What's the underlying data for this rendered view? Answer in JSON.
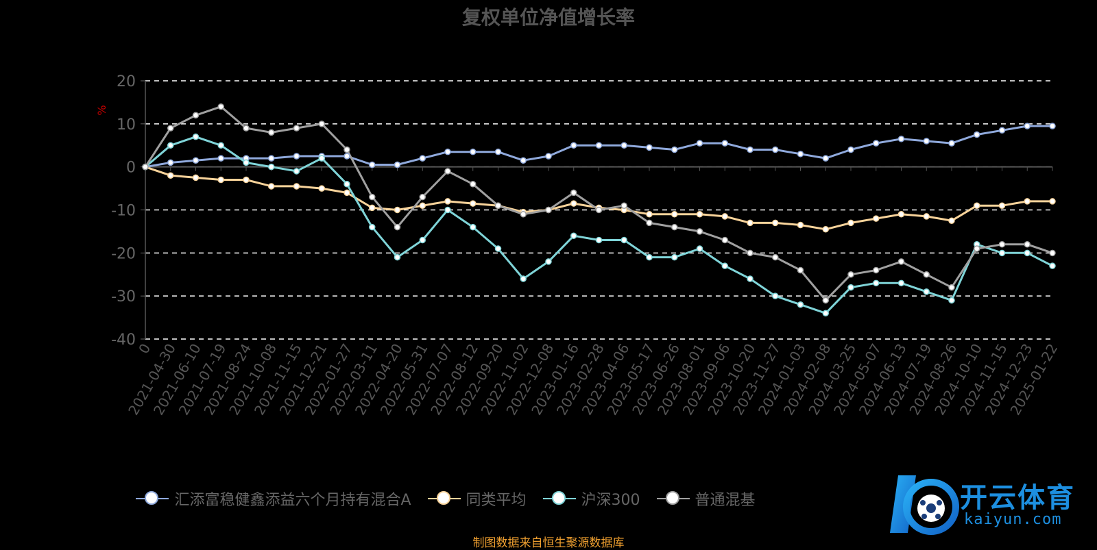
{
  "title": "复权单位净值增长率",
  "source_note": "制图数据来自恒生聚源数据库",
  "watermark": {
    "text": "开云体育",
    "sub": "kaiyun.com"
  },
  "chart_data": {
    "type": "line",
    "title": "复权单位净值增长率",
    "ylabel": "%",
    "ylim": [
      -40,
      20
    ],
    "yticks": [
      20,
      10,
      0,
      -10,
      -20,
      -30,
      -40
    ],
    "grid": true,
    "legend_position": "bottom",
    "xticks": [
      "0",
      "2021-04-30",
      "2021-06-10",
      "2021-07-19",
      "2021-08-24",
      "2021-10-08",
      "2021-11-15",
      "2021-12-21",
      "2022-01-27",
      "2022-03-11",
      "2022-04-20",
      "2022-05-31",
      "2022-07-07",
      "2022-08-12",
      "2022-09-20",
      "2022-11-02",
      "2022-12-08",
      "2023-01-16",
      "2023-02-28",
      "2023-04-06",
      "2023-05-17",
      "2023-06-26",
      "2023-08-01",
      "2023-09-06",
      "2023-10-20",
      "2023-11-27",
      "2024-01-03",
      "2024-02-08",
      "2024-03-25",
      "2024-05-07",
      "2024-06-13",
      "2024-07-19",
      "2024-08-26",
      "2024-10-10",
      "2024-11-15",
      "2024-12-23",
      "2025-01-22"
    ],
    "series": [
      {
        "name": "汇添富稳健鑫添益六个月持有混合A",
        "color": "#8fa9dc",
        "values": [
          0,
          1,
          1.5,
          2,
          2,
          2,
          2.5,
          2.5,
          2.5,
          0.5,
          0.5,
          2,
          3.5,
          3.5,
          3.5,
          1.5,
          2.5,
          5,
          5,
          5,
          4.5,
          4,
          5.5,
          5.5,
          4,
          4,
          3,
          2,
          4,
          5.5,
          6.5,
          6,
          5.5,
          7.5,
          8.5,
          9.5,
          9.5
        ]
      },
      {
        "name": "同类平均",
        "color": "#f8d39a",
        "values": [
          0,
          -2,
          -2.5,
          -3,
          -3,
          -4.5,
          -4.5,
          -5,
          -6,
          -9.5,
          -10,
          -9,
          -8,
          -8.5,
          -9,
          -10.5,
          -10,
          -8.5,
          -9.5,
          -10,
          -11,
          -11,
          -11,
          -11.5,
          -13,
          -13,
          -13.5,
          -14.5,
          -13,
          -12,
          -11,
          -11.5,
          -12.5,
          -9,
          -9,
          -8,
          -8
        ]
      },
      {
        "name": "沪深300",
        "color": "#7fd4d8",
        "values": [
          0,
          5,
          7,
          5,
          1,
          0,
          -1,
          2,
          -4,
          -14,
          -21,
          -17,
          -10,
          -14,
          -19,
          -26,
          -22,
          -16,
          -17,
          -17,
          -21,
          -21,
          -19,
          -23,
          -26,
          -30,
          -32,
          -34,
          -28,
          -27,
          -27,
          -29,
          -31,
          -18,
          -20,
          -20,
          -23
        ]
      },
      {
        "name": "普通混基",
        "color": "#a0a0a0",
        "values": [
          0,
          9,
          12,
          14,
          9,
          8,
          9,
          10,
          4,
          -7,
          -14,
          -7,
          -1,
          -4,
          -9,
          -11,
          -10,
          -6,
          -10,
          -9,
          -13,
          -14,
          -15,
          -17,
          -20,
          -21,
          -24,
          -31,
          -25,
          -24,
          -22,
          -25,
          -28,
          -19,
          -18,
          -18,
          -20
        ]
      }
    ]
  }
}
